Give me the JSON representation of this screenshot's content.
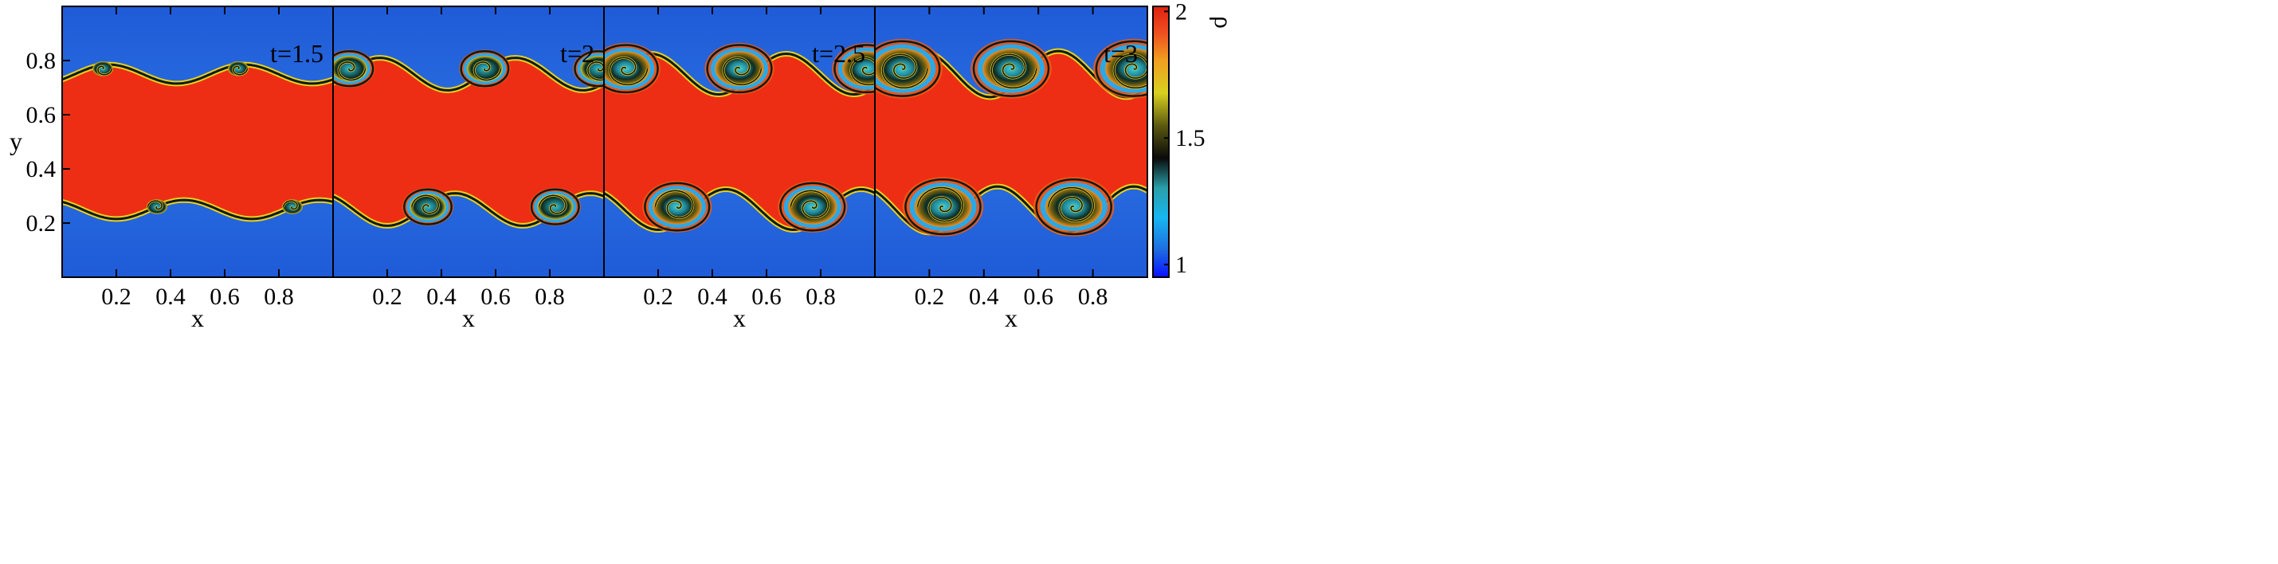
{
  "figure": {
    "field_name": "ρ",
    "panels": [
      {
        "time_label": "t=1.5",
        "xlabel": "x"
      },
      {
        "time_label": "t=2",
        "xlabel": "x"
      },
      {
        "time_label": "t=2.5",
        "xlabel": "x"
      },
      {
        "time_label": "t=3",
        "xlabel": "x"
      }
    ],
    "ylabel": "y",
    "x_ticks": [
      "0.2",
      "0.4",
      "0.6",
      "0.8"
    ],
    "x_tick_values": [
      0.2,
      0.4,
      0.6,
      0.8
    ],
    "x_range": [
      0,
      1
    ],
    "y_ticks": [
      "0.2",
      "0.4",
      "0.6",
      "0.8"
    ],
    "y_tick_values": [
      0.2,
      0.4,
      0.6,
      0.8
    ],
    "y_range": [
      0,
      1
    ],
    "colorbar": {
      "label": "ρ",
      "ticks": [
        "1",
        "1.5",
        "2"
      ],
      "tick_values": [
        1,
        1.5,
        2
      ],
      "range": [
        0.95,
        2.02
      ],
      "colors": [
        "#0a10ff",
        "#1e6ce0",
        "#18b6f0",
        "#2ab0b0",
        "#0a0a0a",
        "#5c5a10",
        "#d8d020",
        "#f0a020",
        "#f04018",
        "#e02010"
      ]
    }
  }
}
